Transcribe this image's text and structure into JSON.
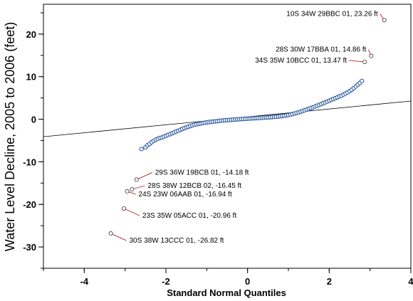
{
  "chart_data": {
    "type": "scatter",
    "title": "",
    "xlabel": "Standard Normal Quantiles",
    "ylabel": "Water Level Decline, 2005 to 2006 (feet)",
    "xlim": [
      -5,
      4
    ],
    "ylim": [
      -35,
      27
    ],
    "x_ticks": [
      -4,
      -2,
      0,
      2,
      4
    ],
    "y_ticks": [
      -30,
      -20,
      -10,
      0,
      10,
      20
    ],
    "grid": false,
    "point_color": "#1f4e9a",
    "outlier_fill": "#ffffff",
    "leader_color": "#b22222",
    "reference_line": {
      "slope": 0.93,
      "intercept": 0.55
    },
    "labeled_points": [
      {
        "x": 3.35,
        "y": 23.26,
        "label": "10S 34W 29BBC 01, 23.26 ft"
      },
      {
        "x": 3.03,
        "y": 14.86,
        "label": "28S 30W 17BBA 01, 14.86 ft"
      },
      {
        "x": 2.87,
        "y": 13.47,
        "label": "34S 35W 10BCC 01, 13.47 ft"
      },
      {
        "x": -2.72,
        "y": -14.18,
        "label": "29S 36W 19BCB 01,  -14.18 ft"
      },
      {
        "x": -2.83,
        "y": -16.45,
        "label": "28S 38W 12BCB 02, -16.45 ft"
      },
      {
        "x": -2.95,
        "y": -16.94,
        "label": "24S 23W 06AAB 01, -16.94 ft"
      },
      {
        "x": -3.03,
        "y": -20.96,
        "label": "23S 35W 05ACC 01, -20.96 ft"
      },
      {
        "x": -3.35,
        "y": -26.82,
        "label": "30S 38W 13CCC 01, -26.82 ft"
      }
    ],
    "series": [
      {
        "points": [
          [
            -2.6,
            -7.0
          ],
          [
            -2.5,
            -6.6
          ],
          [
            -2.45,
            -6.1
          ],
          [
            -2.4,
            -5.8
          ],
          [
            -2.35,
            -5.4
          ],
          [
            -2.3,
            -5.1
          ],
          [
            -2.25,
            -4.8
          ],
          [
            -2.2,
            -4.6
          ],
          [
            -2.15,
            -4.4
          ],
          [
            -2.1,
            -4.3
          ],
          [
            -2.05,
            -4.1
          ],
          [
            -2.0,
            -3.9
          ],
          [
            -1.95,
            -3.7
          ],
          [
            -1.9,
            -3.5
          ],
          [
            -1.85,
            -3.3
          ],
          [
            -1.8,
            -3.1
          ],
          [
            -1.75,
            -2.9
          ],
          [
            -1.7,
            -2.7
          ],
          [
            -1.65,
            -2.5
          ],
          [
            -1.6,
            -2.3
          ],
          [
            -1.55,
            -2.1
          ],
          [
            -1.5,
            -1.9
          ],
          [
            -1.45,
            -1.75
          ],
          [
            -1.4,
            -1.6
          ],
          [
            -1.35,
            -1.45
          ],
          [
            -1.3,
            -1.3
          ],
          [
            -1.25,
            -1.2
          ],
          [
            -1.2,
            -1.1
          ],
          [
            -1.15,
            -1.0
          ],
          [
            -1.1,
            -0.9
          ],
          [
            -1.05,
            -0.82
          ],
          [
            -1.0,
            -0.75
          ],
          [
            -0.95,
            -0.68
          ],
          [
            -0.9,
            -0.62
          ],
          [
            -0.85,
            -0.56
          ],
          [
            -0.8,
            -0.5
          ],
          [
            -0.75,
            -0.45
          ],
          [
            -0.7,
            -0.4
          ],
          [
            -0.65,
            -0.35
          ],
          [
            -0.6,
            -0.3
          ],
          [
            -0.55,
            -0.26
          ],
          [
            -0.5,
            -0.22
          ],
          [
            -0.45,
            -0.18
          ],
          [
            -0.4,
            -0.14
          ],
          [
            -0.35,
            -0.1
          ],
          [
            -0.3,
            -0.06
          ],
          [
            -0.25,
            -0.02
          ],
          [
            -0.2,
            0.01
          ],
          [
            -0.15,
            0.04
          ],
          [
            -0.1,
            0.07
          ],
          [
            -0.05,
            0.1
          ],
          [
            0.0,
            0.13
          ],
          [
            0.05,
            0.16
          ],
          [
            0.1,
            0.19
          ],
          [
            0.15,
            0.22
          ],
          [
            0.2,
            0.25
          ],
          [
            0.25,
            0.28
          ],
          [
            0.3,
            0.31
          ],
          [
            0.35,
            0.34
          ],
          [
            0.4,
            0.37
          ],
          [
            0.45,
            0.4
          ],
          [
            0.5,
            0.43
          ],
          [
            0.55,
            0.47
          ],
          [
            0.6,
            0.51
          ],
          [
            0.65,
            0.55
          ],
          [
            0.7,
            0.6
          ],
          [
            0.75,
            0.65
          ],
          [
            0.8,
            0.7
          ],
          [
            0.85,
            0.76
          ],
          [
            0.9,
            0.82
          ],
          [
            0.95,
            0.9
          ],
          [
            1.0,
            0.98
          ],
          [
            1.05,
            1.08
          ],
          [
            1.1,
            1.2
          ],
          [
            1.15,
            1.33
          ],
          [
            1.2,
            1.47
          ],
          [
            1.25,
            1.62
          ],
          [
            1.3,
            1.78
          ],
          [
            1.35,
            1.95
          ],
          [
            1.4,
            2.12
          ],
          [
            1.45,
            2.28
          ],
          [
            1.5,
            2.45
          ],
          [
            1.55,
            2.62
          ],
          [
            1.6,
            2.8
          ],
          [
            1.65,
            2.98
          ],
          [
            1.7,
            3.16
          ],
          [
            1.75,
            3.35
          ],
          [
            1.8,
            3.55
          ],
          [
            1.85,
            3.75
          ],
          [
            1.9,
            3.95
          ],
          [
            1.95,
            4.15
          ],
          [
            2.0,
            4.35
          ],
          [
            2.05,
            4.55
          ],
          [
            2.1,
            4.75
          ],
          [
            2.15,
            4.95
          ],
          [
            2.2,
            5.15
          ],
          [
            2.25,
            5.35
          ],
          [
            2.3,
            5.55
          ],
          [
            2.35,
            5.8
          ],
          [
            2.4,
            6.05
          ],
          [
            2.45,
            6.3
          ],
          [
            2.5,
            6.6
          ],
          [
            2.55,
            6.9
          ],
          [
            2.6,
            7.3
          ],
          [
            2.65,
            7.7
          ],
          [
            2.7,
            8.1
          ],
          [
            2.75,
            8.5
          ],
          [
            2.8,
            9.0
          ]
        ]
      }
    ]
  }
}
